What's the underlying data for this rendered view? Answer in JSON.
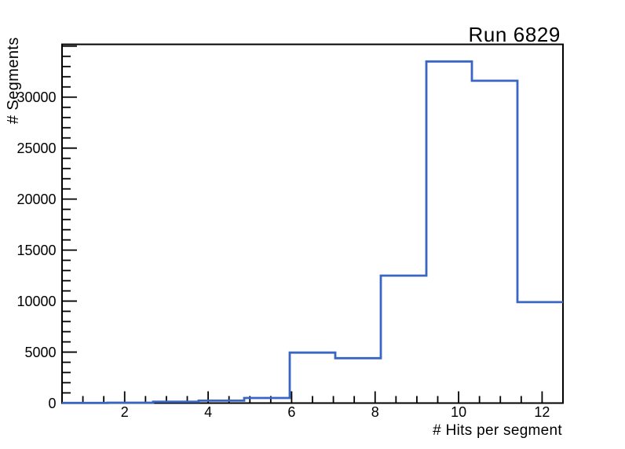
{
  "colors": {
    "histogram_line": "#3866c2",
    "axis": "#000000",
    "background": "#ffffff",
    "text": "#000000"
  },
  "chart_data": {
    "type": "histogram",
    "title": "Run 6829",
    "xlabel": "# Hits per segment",
    "ylabel": "# Segments",
    "xlim": [
      0.5,
      12.5
    ],
    "ylim": [
      0,
      35175
    ],
    "grid": false,
    "legend": null,
    "bin_edges": [
      0.5,
      1.5909,
      2.6818,
      3.7727,
      4.8636,
      5.9545,
      7.0455,
      8.1364,
      9.2273,
      10.3182,
      11.4091,
      12.5
    ],
    "counts": [
      15,
      40,
      130,
      240,
      500,
      4950,
      4400,
      12500,
      33500,
      31600,
      9900
    ],
    "x_major_ticks": [
      2,
      4,
      6,
      8,
      10,
      12
    ],
    "x_tick_labels": [
      "2",
      "4",
      "6",
      "8",
      "10",
      "12"
    ],
    "x_minor_step": 0.5,
    "y_major_ticks": [
      0,
      5000,
      10000,
      15000,
      20000,
      25000,
      30000
    ],
    "y_tick_labels": [
      "0",
      "5000",
      "10000",
      "15000",
      "20000",
      "25000",
      "30000"
    ],
    "y_minor_step": 1000,
    "y_major_step": 5000
  }
}
